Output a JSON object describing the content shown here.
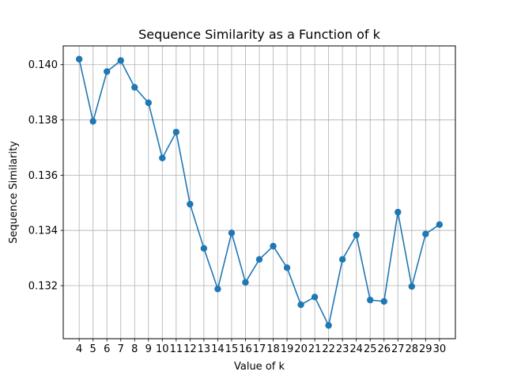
{
  "chart_data": {
    "type": "line",
    "title": "Sequence Similarity as a Function of k",
    "xlabel": "Value of k",
    "ylabel": "Sequence Similarity",
    "x": [
      4,
      5,
      6,
      7,
      8,
      9,
      10,
      11,
      12,
      13,
      14,
      15,
      16,
      17,
      18,
      19,
      20,
      21,
      22,
      23,
      24,
      25,
      26,
      27,
      28,
      29,
      30
    ],
    "series": [
      {
        "values": [
          0.1402,
          0.13795,
          0.13975,
          0.14015,
          0.13918,
          0.13862,
          0.13662,
          0.13756,
          0.13495,
          0.13335,
          0.13188,
          0.13391,
          0.13212,
          0.13295,
          0.13343,
          0.13265,
          0.13131,
          0.13159,
          0.13056,
          0.13295,
          0.13383,
          0.13148,
          0.13143,
          0.13466,
          0.13197,
          0.13387,
          0.13421
        ],
        "color": "#1f77b4",
        "marker": "circle"
      }
    ],
    "xticks": [
      "4",
      "5",
      "6",
      "7",
      "8",
      "9",
      "10",
      "11",
      "12",
      "13",
      "14",
      "15",
      "16",
      "17",
      "18",
      "19",
      "20",
      "21",
      "22",
      "23",
      "24",
      "25",
      "26",
      "27",
      "28",
      "29",
      "30"
    ],
    "yticks": [
      "0.132",
      "0.134",
      "0.136",
      "0.138",
      "0.140"
    ],
    "ytick_values": [
      0.132,
      0.134,
      0.136,
      0.138,
      0.14
    ],
    "xlim": [
      2.85,
      31.15
    ],
    "ylim": [
      0.13008,
      0.14068
    ],
    "grid": true
  }
}
